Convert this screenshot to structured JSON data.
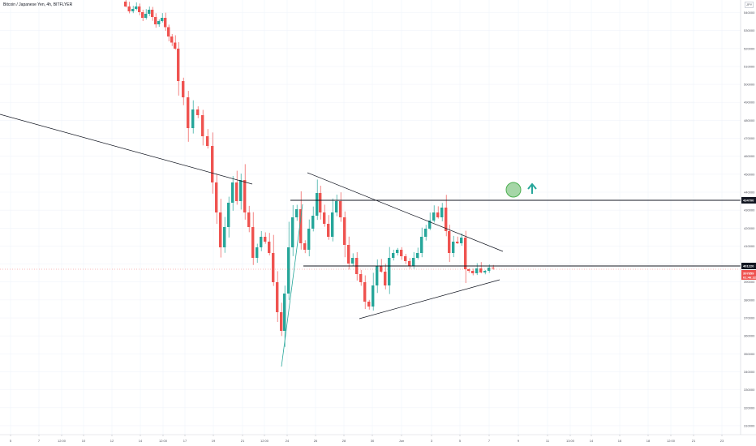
{
  "header": {
    "title": "Bitcoin / Japanese Yen, 4h, BITFLYER",
    "badge": "JPY"
  },
  "colors": {
    "up": "#26a69a",
    "down": "#ef5350",
    "grid": "#f0f3fa",
    "line": "#131722",
    "circle_fill": "#a5d6a7",
    "circle_stroke": "#4caf50",
    "arrow": "#26a69a",
    "price_tag": "#ef5350",
    "level_tag": "#131722"
  },
  "chart_data": {
    "type": "candlestick",
    "title": "Bitcoin / Japanese Yen, 4h, BITFLYER",
    "ylim": [
      305000,
      547000
    ],
    "yticks": [
      310000,
      320000,
      330000,
      340000,
      350000,
      360000,
      370000,
      380000,
      390000,
      400000,
      410000,
      420000,
      430000,
      440000,
      450000,
      460000,
      470000,
      480000,
      490000,
      500000,
      510000,
      520000,
      530000,
      540000
    ],
    "xticks": [
      {
        "label": "5",
        "x": 13
      },
      {
        "label": "7",
        "x": 48
      },
      {
        "label": "12:00",
        "x": 76
      },
      {
        "label": "10",
        "x": 103
      },
      {
        "label": "12",
        "x": 138
      },
      {
        "label": "14",
        "x": 173
      },
      {
        "label": "12:00",
        "x": 201
      },
      {
        "label": "17",
        "x": 228
      },
      {
        "label": "19",
        "x": 263
      },
      {
        "label": "21",
        "x": 299
      },
      {
        "label": "12:00",
        "x": 326
      },
      {
        "label": "24",
        "x": 354
      },
      {
        "label": "26",
        "x": 389
      },
      {
        "label": "28",
        "x": 424
      },
      {
        "label": "30",
        "x": 459
      },
      {
        "label": "Jun",
        "x": 495
      },
      {
        "label": "3",
        "x": 532
      },
      {
        "label": "5",
        "x": 567
      },
      {
        "label": "7",
        "x": 603
      },
      {
        "label": "9",
        "x": 639
      },
      {
        "label": "11",
        "x": 675
      },
      {
        "label": "13:00",
        "x": 703
      },
      {
        "label": "14",
        "x": 729
      },
      {
        "label": "16",
        "x": 764
      },
      {
        "label": "18",
        "x": 799
      },
      {
        "label": "12:00",
        "x": 827
      },
      {
        "label": "21",
        "x": 855
      },
      {
        "label": "23",
        "x": 890
      }
    ],
    "price_tag": {
      "value": "397859",
      "sub": "01:46:22"
    },
    "level_tags": [
      {
        "value": "434700"
      },
      {
        "value": "401220"
      }
    ]
  }
}
